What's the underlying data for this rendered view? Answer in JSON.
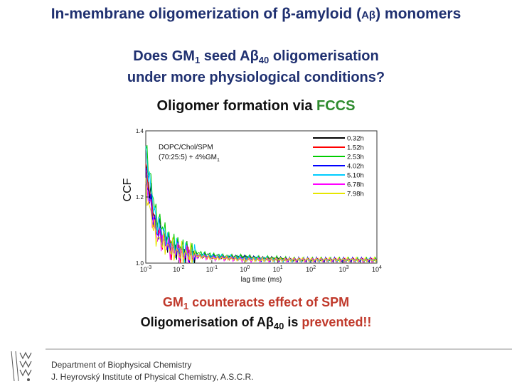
{
  "slide": {
    "title_part1": "In-membrane oligomerization of β-amyloid",
    "title_paren_open": " (",
    "title_abbrev": "Aβ",
    "title_part2": ") monomers",
    "question_line1_a": "Does GM",
    "question_line1_sub1": "1",
    "question_line1_b": " seed Aβ",
    "question_line1_sub2": "40",
    "question_line1_c": " oligomerisation",
    "question_line2": "under more physiological conditions?",
    "method_prefix": "Oligomer formation via ",
    "method_highlight": "FCCS",
    "conclusion1_a": "GM",
    "conclusion1_sub": "1",
    "conclusion1_b": " counteracts effect of SPM",
    "conclusion2_a": "Oligomerisation of Aβ",
    "conclusion2_sub": "40",
    "conclusion2_b": " is ",
    "conclusion2_red": "prevented!!",
    "footer_line1": "Department of Biophysical Chemistry",
    "footer_line2": "J. Heyrovský Institute of Physical Chemistry, A.S.C.R."
  },
  "colors": {
    "title": "#1f3070",
    "accent_green": "#2e8b2e",
    "accent_red": "#c0392b"
  },
  "chart_data": {
    "type": "line",
    "xlabel": "lag time (ms)",
    "ylabel": "CCF",
    "xscale": "log",
    "xlim": [
      0.001,
      10000
    ],
    "ylim": [
      1.0,
      1.4
    ],
    "x_ticks": [
      {
        "value": 0.001,
        "base": "10",
        "exp": "-3"
      },
      {
        "value": 0.01,
        "base": "10",
        "exp": "-2"
      },
      {
        "value": 0.1,
        "base": "10",
        "exp": "-1"
      },
      {
        "value": 1,
        "base": "10",
        "exp": "0"
      },
      {
        "value": 10,
        "base": "10",
        "exp": "1"
      },
      {
        "value": 100,
        "base": "10",
        "exp": "2"
      },
      {
        "value": 1000,
        "base": "10",
        "exp": "3"
      },
      {
        "value": 10000,
        "base": "10",
        "exp": "4"
      }
    ],
    "y_ticks": [
      {
        "value": 1.0,
        "label": "1.0"
      },
      {
        "value": 1.2,
        "label": "1.2"
      },
      {
        "value": 1.4,
        "label": "1.4"
      }
    ],
    "annotation_line1": "DOPC/Chol/SPM",
    "annotation_line2_a": "(70:25:5) + 4%GM",
    "annotation_line2_sub": "1",
    "legend_position": "top-right",
    "series": [
      {
        "name": "0.32h",
        "color": "#000000",
        "x": [
          0.001,
          0.002,
          0.005,
          0.01,
          0.02,
          0.05,
          0.1,
          0.3,
          1,
          3,
          10,
          30,
          100,
          300,
          1000,
          3000,
          10000
        ],
        "y": [
          1.3,
          1.12,
          1.06,
          1.04,
          1.03,
          1.025,
          1.02,
          1.02,
          1.02,
          1.015,
          1.015,
          1.01,
          1.01,
          1.01,
          1.01,
          1.01,
          1.01
        ]
      },
      {
        "name": "1.52h",
        "color": "#ff0000",
        "x": [
          0.001,
          0.002,
          0.005,
          0.01,
          0.02,
          0.05,
          0.1,
          0.3,
          1,
          3,
          10,
          30,
          100,
          300,
          1000,
          3000,
          10000
        ],
        "y": [
          1.28,
          1.11,
          1.05,
          1.035,
          1.03,
          1.02,
          1.02,
          1.015,
          1.015,
          1.015,
          1.01,
          1.01,
          1.01,
          1.01,
          1.01,
          1.01,
          1.01
        ]
      },
      {
        "name": "2.53h",
        "color": "#00cc00",
        "x": [
          0.001,
          0.002,
          0.005,
          0.01,
          0.02,
          0.05,
          0.1,
          0.3,
          1,
          3,
          10,
          30,
          100,
          300,
          1000,
          3000,
          10000
        ],
        "y": [
          1.35,
          1.15,
          1.07,
          1.05,
          1.035,
          1.03,
          1.025,
          1.02,
          1.02,
          1.015,
          1.015,
          1.01,
          1.01,
          1.01,
          1.01,
          1.01,
          1.01
        ]
      },
      {
        "name": "4.02h",
        "color": "#0000ff",
        "x": [
          0.001,
          0.002,
          0.005,
          0.01,
          0.02,
          0.05,
          0.1,
          0.3,
          1,
          3,
          10,
          30,
          100,
          300,
          1000,
          3000,
          10000
        ],
        "y": [
          1.26,
          1.1,
          1.05,
          1.035,
          1.025,
          1.02,
          1.02,
          1.015,
          1.015,
          1.01,
          1.01,
          1.01,
          1.01,
          1.01,
          1.01,
          1.01,
          1.01
        ]
      },
      {
        "name": "5.10h",
        "color": "#00ccff",
        "x": [
          0.001,
          0.002,
          0.005,
          0.01,
          0.02,
          0.05,
          0.1,
          0.3,
          1,
          3,
          10,
          30,
          100,
          300,
          1000,
          3000,
          10000
        ],
        "y": [
          1.33,
          1.13,
          1.06,
          1.045,
          1.03,
          1.025,
          1.02,
          1.02,
          1.015,
          1.015,
          1.01,
          1.01,
          1.01,
          1.01,
          1.01,
          1.01,
          1.01
        ]
      },
      {
        "name": "6.78h",
        "color": "#ff00ff",
        "x": [
          0.001,
          0.002,
          0.005,
          0.01,
          0.02,
          0.05,
          0.1,
          0.3,
          1,
          3,
          10,
          30,
          100,
          300,
          1000,
          3000,
          10000
        ],
        "y": [
          1.24,
          1.09,
          1.05,
          1.03,
          1.025,
          1.02,
          1.015,
          1.015,
          1.01,
          1.01,
          1.01,
          1.01,
          1.01,
          1.01,
          1.01,
          1.01,
          1.01
        ]
      },
      {
        "name": "7.98h",
        "color": "#e6e600",
        "x": [
          0.001,
          0.002,
          0.005,
          0.01,
          0.02,
          0.05,
          0.1,
          0.3,
          1,
          3,
          10,
          30,
          100,
          300,
          1000,
          3000,
          10000
        ],
        "y": [
          1.22,
          1.08,
          1.045,
          1.03,
          1.025,
          1.02,
          1.015,
          1.015,
          1.01,
          1.01,
          1.01,
          1.01,
          1.01,
          1.01,
          1.01,
          1.01,
          1.01
        ]
      }
    ]
  }
}
